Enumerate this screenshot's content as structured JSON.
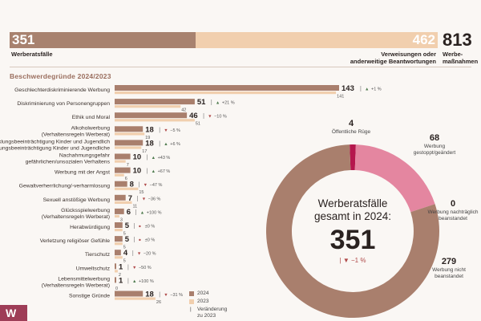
{
  "header": {
    "complaints_value": "351",
    "complaints_label": "Werberatsfälle",
    "referrals_value": "462",
    "referrals_label_1": "Verweisungen oder",
    "referrals_label_2": "anderweitige Beantwortungen",
    "measures_value": "813",
    "measures_label_1": "Werbe-",
    "measures_label_2": "maßnahmen"
  },
  "chart_data": [
    {
      "type": "bar",
      "title": "Beschwerdegründe 2024/2023",
      "categories": [
        "Geschlechterdiskriminierende Werbung",
        "Diskriminierung von Personengruppen",
        "Ethik und Moral",
        "Alkoholwerbung (Verhaltensregeln Werberat)",
        "Entwicklungsbeeinträchtigung Kinder und Jugendliche",
        "Nachahmungsgefahr gefährlichen/unsozialen Verhaltens",
        "Werbung mit der Angst",
        "Gewaltverherrlichung/-verharmlosung",
        "Sexuell anstößige Werbung",
        "Glücksspielwerbung (Verhaltensregeln Werberat)",
        "Herabwürdigung",
        "Verletzung religiöser Gefühle",
        "Tierschutz",
        "Umweltschutz",
        "Lebensmittelwerbung (Verhaltensregeln Werberat)",
        "Sonstige Gründe"
      ],
      "series": [
        {
          "name": "2024",
          "values": [
            143,
            51,
            46,
            18,
            18,
            10,
            10,
            8,
            7,
            6,
            5,
            5,
            4,
            1,
            1,
            18
          ]
        },
        {
          "name": "2023",
          "values": [
            141,
            42,
            51,
            19,
            17,
            7,
            6,
            15,
            11,
            3,
            5,
            5,
            5,
            2,
            0,
            26
          ]
        }
      ],
      "changes": [
        "+1 %",
        "+21 %",
        "−10 %",
        "−5 %",
        "+6 %",
        "+43 %",
        "+67 %",
        "−47 %",
        "−36 %",
        "+100 %",
        "±0 %",
        "±0 %",
        "−20 %",
        "−50 %",
        "+100 %",
        "−31 %"
      ],
      "change_dir": [
        "up",
        "up",
        "down",
        "down",
        "up",
        "up",
        "up",
        "down",
        "down",
        "up",
        "flat",
        "flat",
        "down",
        "down",
        "up",
        "down"
      ],
      "xlim": [
        0,
        143
      ],
      "legend": [
        "2024",
        "2023",
        "Veränderung zu 2023"
      ],
      "legend_position": "bottom-right"
    },
    {
      "type": "pie",
      "center_title_1": "Werberatsfälle",
      "center_title_2": "gesamt in 2024:",
      "total": "351",
      "total_change": "−1 %",
      "slices": [
        {
          "label": "Öffentliche Rüge",
          "value": 4,
          "color": "#b5174d"
        },
        {
          "label": "Werbung gestoppt/geändert",
          "value": 68,
          "color": "#e486a0"
        },
        {
          "label": "Werbung nachträglich beanstandet",
          "value": 0,
          "color": "#c96b83"
        },
        {
          "label": "Werbung nicht beanstandet",
          "value": 279,
          "color": "#a97f6d"
        }
      ]
    }
  ],
  "colors": {
    "bar_2024": "#a97f6d",
    "bar_2023": "#f1cfae",
    "accent": "#9e3d57",
    "up": "#4d7a4d",
    "down": "#b04a4a"
  },
  "logo_text": "W"
}
